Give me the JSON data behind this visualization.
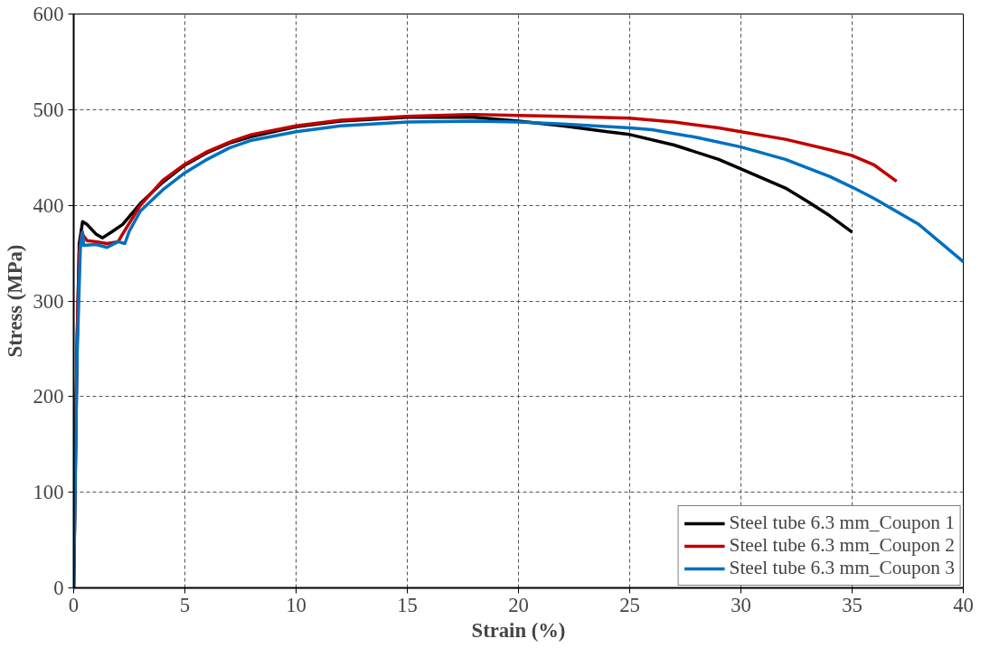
{
  "chart_data": {
    "type": "line",
    "xlabel": "Strain (%)",
    "ylabel": "Stress (MPa)",
    "xlim": [
      0,
      40
    ],
    "ylim": [
      0,
      600
    ],
    "xticks": [
      0,
      5,
      10,
      15,
      20,
      25,
      30,
      35,
      40
    ],
    "yticks": [
      0,
      100,
      200,
      300,
      400,
      500,
      600
    ],
    "grid": true,
    "legend": "bottom right",
    "line_style": "solid",
    "marker": "none",
    "series": [
      {
        "name": "Steel tube 6.3 mm_Coupon 1",
        "color": "#000000",
        "x": [
          0,
          0.15,
          0.25,
          0.4,
          0.6,
          1,
          1.3,
          1.7,
          2.2,
          3,
          4,
          5,
          6,
          7,
          8,
          10,
          12,
          15,
          18,
          20,
          22,
          24,
          25,
          27,
          29,
          30,
          32,
          33,
          34,
          35
        ],
        "values": [
          0,
          250,
          360,
          383,
          380,
          370,
          366,
          372,
          380,
          402,
          424,
          442,
          455,
          465,
          472,
          482,
          488,
          492,
          492,
          488,
          483,
          477,
          474,
          463,
          448,
          438,
          418,
          404,
          389,
          372
        ]
      },
      {
        "name": "Steel tube 6.3 mm_Coupon 2",
        "color": "#c00000",
        "x": [
          0,
          0.15,
          0.25,
          0.35,
          0.6,
          1,
          1.5,
          2,
          2.2,
          3,
          4,
          5,
          6,
          7,
          8,
          10,
          12,
          15,
          18,
          20,
          22,
          25,
          27,
          29,
          30,
          32,
          34,
          35,
          36,
          37
        ],
        "values": [
          0,
          260,
          350,
          371,
          363,
          362,
          360,
          362,
          370,
          400,
          426,
          443,
          456,
          466,
          474,
          483,
          489,
          493,
          495,
          494,
          493,
          491,
          487,
          481,
          477,
          469,
          458,
          452,
          442,
          425
        ]
      },
      {
        "name": "Steel tube 6.3 mm_Coupon 3",
        "color": "#0070c0",
        "x": [
          0,
          0.15,
          0.3,
          0.4,
          0.45,
          1,
          1.5,
          2,
          2.3,
          2.5,
          3,
          4,
          5,
          6,
          7,
          8,
          10,
          12,
          15,
          18,
          20,
          22,
          25,
          26,
          28,
          30,
          32,
          34,
          35,
          36,
          38,
          40
        ],
        "values": [
          0,
          240,
          355,
          372,
          358,
          359,
          356,
          362,
          360,
          373,
          394,
          416,
          434,
          448,
          460,
          468,
          477,
          483,
          487,
          488,
          487,
          485,
          481,
          479,
          471,
          461,
          448,
          430,
          419,
          407,
          380,
          341
        ]
      }
    ]
  }
}
